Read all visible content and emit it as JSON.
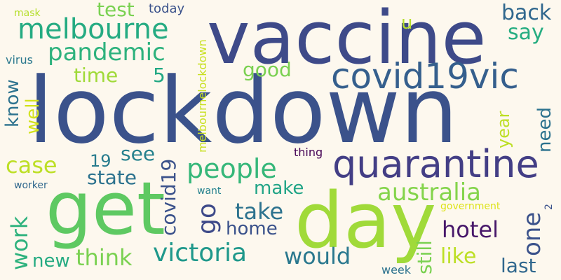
{
  "word_cloud": {
    "background": "#fdf8ee",
    "words": [
      {
        "text": "lockdown",
        "color": "#3b528b",
        "rotated": false
      },
      {
        "text": "vaccine",
        "color": "#3e4a89",
        "rotated": false
      },
      {
        "text": "get",
        "color": "#5ec962",
        "rotated": false
      },
      {
        "text": "day",
        "color": "#a0da39",
        "rotated": false
      },
      {
        "text": "quarantine",
        "color": "#433e85",
        "rotated": false
      },
      {
        "text": "covid19vic",
        "color": "#355f8d",
        "rotated": false
      },
      {
        "text": "melbourne",
        "color": "#25ab82",
        "rotated": false
      },
      {
        "text": "pandemic",
        "color": "#2db27d",
        "rotated": false
      },
      {
        "text": "people",
        "color": "#35b779",
        "rotated": false
      },
      {
        "text": "australia",
        "color": "#84d44b",
        "rotated": false
      },
      {
        "text": "victoria",
        "color": "#1f988b",
        "rotated": false
      },
      {
        "text": "hotel",
        "color": "#48186a",
        "rotated": false
      },
      {
        "text": "covid19",
        "color": "#3b528b",
        "rotated": true
      },
      {
        "text": "go",
        "color": "#3e4a89",
        "rotated": true
      },
      {
        "text": "take",
        "color": "#2c728e",
        "rotated": false
      },
      {
        "text": "home",
        "color": "#3b528b",
        "rotated": false
      },
      {
        "text": "make",
        "color": "#20a486",
        "rotated": false
      },
      {
        "text": "think",
        "color": "#7ad151",
        "rotated": false
      },
      {
        "text": "would",
        "color": "#2a788e",
        "rotated": false
      },
      {
        "text": "new",
        "color": "#25ab82",
        "rotated": false
      },
      {
        "text": "work",
        "color": "#2db27d",
        "rotated": true
      },
      {
        "text": "case",
        "color": "#bddf26",
        "rotated": false
      },
      {
        "text": "state",
        "color": "#2c728e",
        "rotated": false
      },
      {
        "text": "see",
        "color": "#26828e",
        "rotated": false
      },
      {
        "text": "19",
        "color": "#287c8e",
        "rotated": false
      },
      {
        "text": "time",
        "color": "#a0da39",
        "rotated": false
      },
      {
        "text": "5",
        "color": "#22a884",
        "rotated": false
      },
      {
        "text": "good",
        "color": "#7ad151",
        "rotated": false
      },
      {
        "text": "back",
        "color": "#31688e",
        "rotated": false
      },
      {
        "text": "say",
        "color": "#26ad81",
        "rotated": false
      },
      {
        "text": "u",
        "color": "#b5de2b",
        "rotated": false
      },
      {
        "text": "test",
        "color": "#7ad151",
        "rotated": false
      },
      {
        "text": "today",
        "color": "#3b528b",
        "rotated": false
      },
      {
        "text": "mask",
        "color": "#b5de2b",
        "rotated": false
      },
      {
        "text": "virus",
        "color": "#2a788e",
        "rotated": false
      },
      {
        "text": "know",
        "color": "#2c728e",
        "rotated": true
      },
      {
        "text": "well",
        "color": "#d2e21b",
        "rotated": true
      },
      {
        "text": "melbournelockdown",
        "color": "#c8e020",
        "rotated": true
      },
      {
        "text": "year",
        "color": "#bddf26",
        "rotated": true
      },
      {
        "text": "need",
        "color": "#2c728e",
        "rotated": true
      },
      {
        "text": "one",
        "color": "#3b528b",
        "rotated": true
      },
      {
        "text": "still",
        "color": "#7ad151",
        "rotated": true
      },
      {
        "text": "like",
        "color": "#bddf26",
        "rotated": false
      },
      {
        "text": "last",
        "color": "#31688e",
        "rotated": false
      },
      {
        "text": "thing",
        "color": "#440154",
        "rotated": false
      },
      {
        "text": "worker",
        "color": "#31688e",
        "rotated": false
      },
      {
        "text": "want",
        "color": "#26828e",
        "rotated": false
      },
      {
        "text": "government",
        "color": "#dde318",
        "rotated": false
      },
      {
        "text": "2",
        "color": "#3b528b",
        "rotated": true
      },
      {
        "text": "week",
        "color": "#2c728e",
        "rotated": false
      }
    ]
  }
}
